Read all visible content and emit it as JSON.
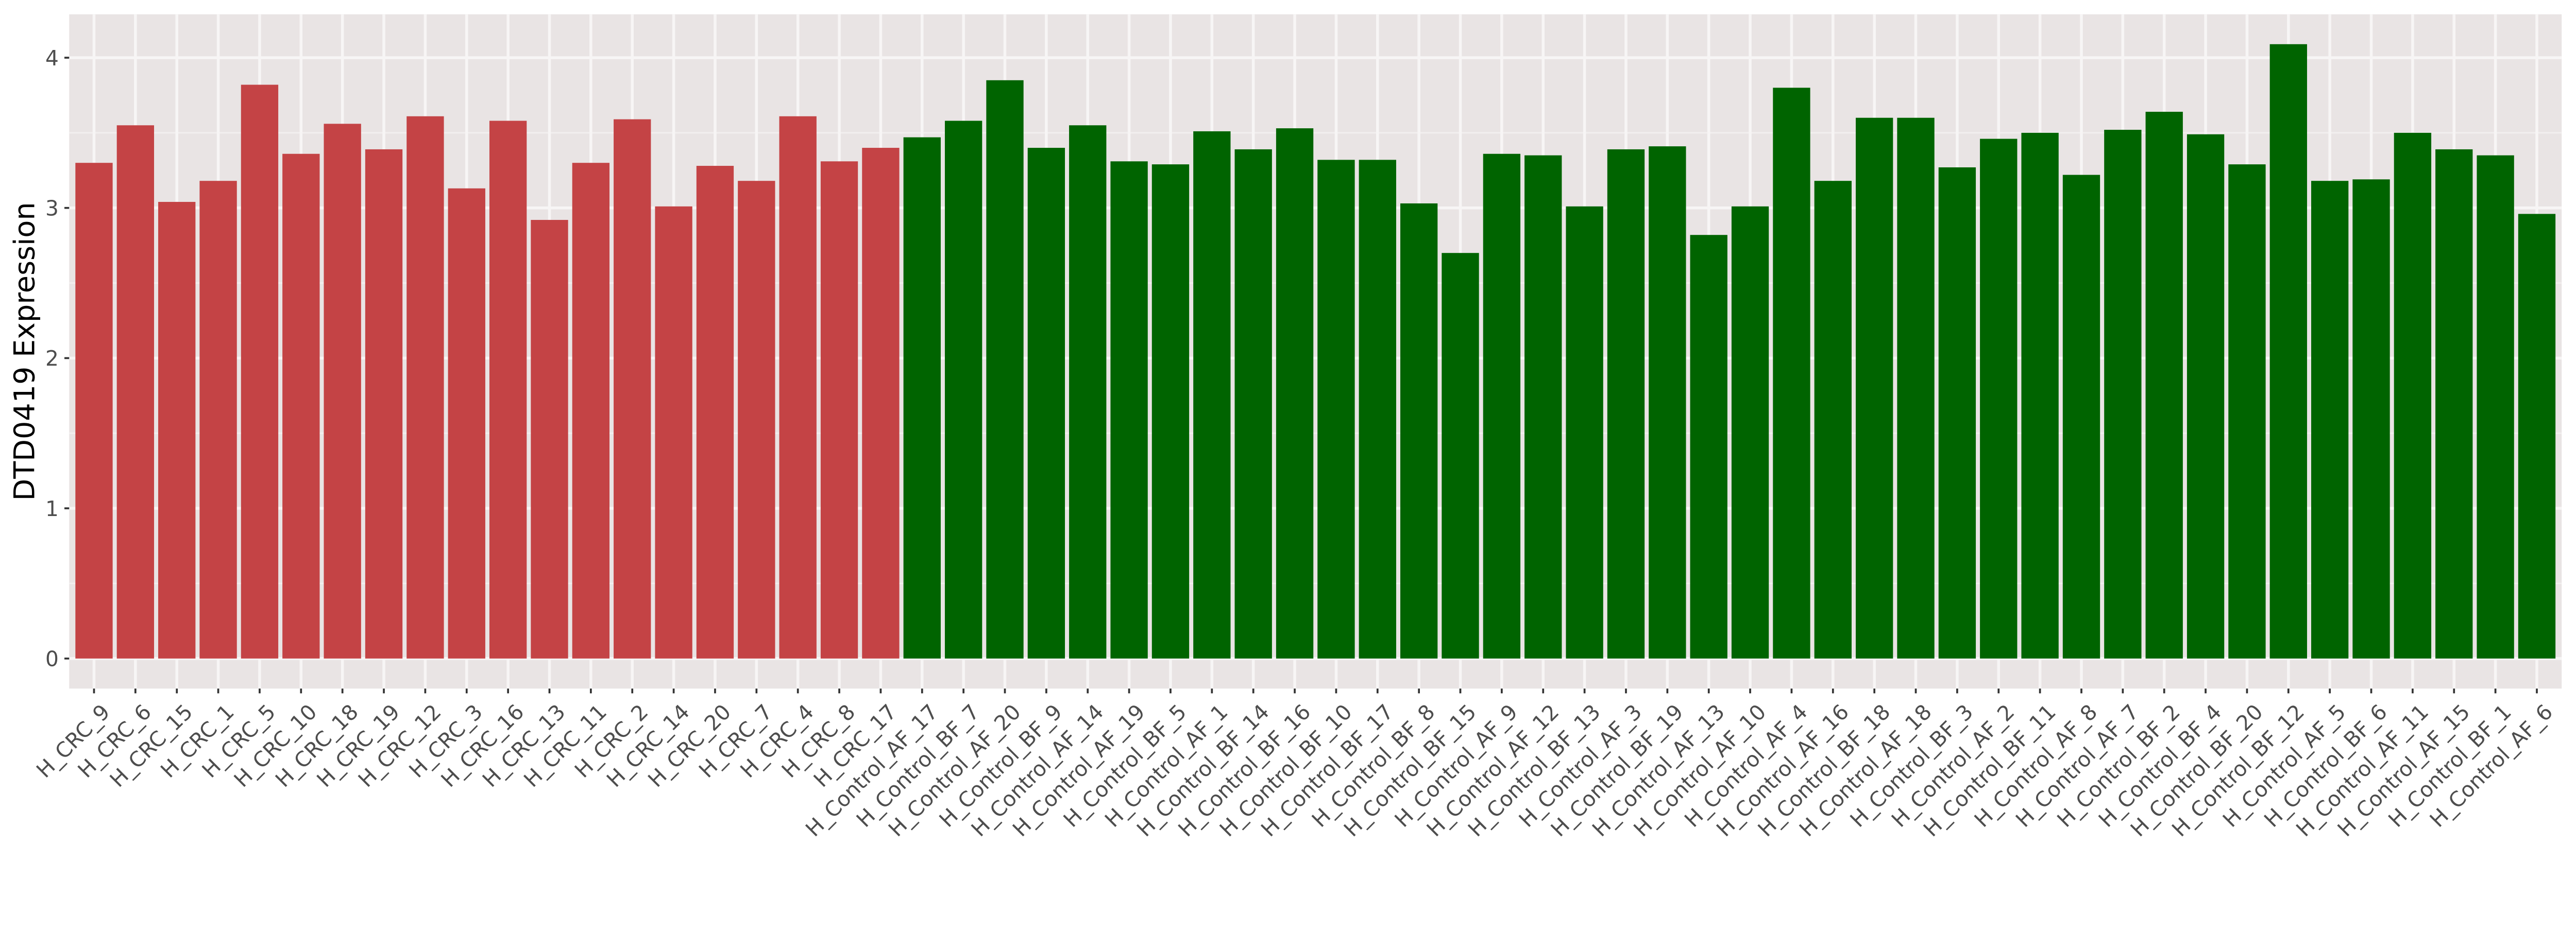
{
  "chart_data": {
    "type": "bar",
    "title": "",
    "xlabel": "",
    "ylabel": "DTD0419 Expression",
    "ylim": [
      0,
      4.29
    ],
    "yticks": [
      "0",
      "1",
      "2",
      "3",
      "4"
    ],
    "grid": true,
    "legend": "none",
    "colors": {
      "CRC": "#C44345",
      "Control": "#006400",
      "panel": "#E9E4E4",
      "grid": "#F7F5F5"
    },
    "categories": [
      "H_CRC_9",
      "H_CRC_6",
      "H_CRC_15",
      "H_CRC_1",
      "H_CRC_5",
      "H_CRC_10",
      "H_CRC_18",
      "H_CRC_19",
      "H_CRC_12",
      "H_CRC_3",
      "H_CRC_16",
      "H_CRC_13",
      "H_CRC_11",
      "H_CRC_2",
      "H_CRC_14",
      "H_CRC_20",
      "H_CRC_7",
      "H_CRC_4",
      "H_CRC_8",
      "H_CRC_17",
      "H_Control_AF_17",
      "H_Control_BF_7",
      "H_Control_AF_20",
      "H_Control_BF_9",
      "H_Control_AF_14",
      "H_Control_AF_19",
      "H_Control_BF_5",
      "H_Control_AF_1",
      "H_Control_BF_14",
      "H_Control_BF_16",
      "H_Control_BF_10",
      "H_Control_BF_17",
      "H_Control_BF_8",
      "H_Control_BF_15",
      "H_Control_AF_9",
      "H_Control_AF_12",
      "H_Control_BF_13",
      "H_Control_AF_3",
      "H_Control_BF_19",
      "H_Control_AF_13",
      "H_Control_AF_10",
      "H_Control_AF_4",
      "H_Control_AF_16",
      "H_Control_BF_18",
      "H_Control_AF_18",
      "H_Control_BF_3",
      "H_Control_AF_2",
      "H_Control_BF_11",
      "H_Control_AF_8",
      "H_Control_AF_7",
      "H_Control_BF_2",
      "H_Control_BF_4",
      "H_Control_BF_20",
      "H_Control_BF_12",
      "H_Control_AF_5",
      "H_Control_BF_6",
      "H_Control_AF_11",
      "H_Control_AF_15",
      "H_Control_BF_1",
      "H_Control_AF_6"
    ],
    "groups": [
      "CRC",
      "CRC",
      "CRC",
      "CRC",
      "CRC",
      "CRC",
      "CRC",
      "CRC",
      "CRC",
      "CRC",
      "CRC",
      "CRC",
      "CRC",
      "CRC",
      "CRC",
      "CRC",
      "CRC",
      "CRC",
      "CRC",
      "CRC",
      "Control",
      "Control",
      "Control",
      "Control",
      "Control",
      "Control",
      "Control",
      "Control",
      "Control",
      "Control",
      "Control",
      "Control",
      "Control",
      "Control",
      "Control",
      "Control",
      "Control",
      "Control",
      "Control",
      "Control",
      "Control",
      "Control",
      "Control",
      "Control",
      "Control",
      "Control",
      "Control",
      "Control",
      "Control",
      "Control",
      "Control",
      "Control",
      "Control",
      "Control",
      "Control",
      "Control",
      "Control",
      "Control",
      "Control",
      "Control"
    ],
    "values": [
      3.3,
      3.55,
      3.04,
      3.18,
      3.82,
      3.36,
      3.56,
      3.39,
      3.61,
      3.13,
      3.58,
      2.92,
      3.3,
      3.59,
      3.01,
      3.28,
      3.18,
      3.61,
      3.31,
      3.4,
      3.47,
      3.58,
      3.85,
      3.4,
      3.55,
      3.31,
      3.29,
      3.51,
      3.39,
      3.53,
      3.32,
      3.32,
      3.03,
      2.7,
      3.36,
      3.35,
      3.01,
      3.39,
      3.41,
      2.82,
      3.01,
      3.8,
      3.18,
      3.6,
      3.6,
      3.27,
      3.46,
      3.5,
      3.22,
      3.52,
      3.64,
      3.49,
      3.29,
      4.09,
      3.18,
      3.19,
      3.5,
      3.39,
      3.35,
      2.96
    ]
  }
}
